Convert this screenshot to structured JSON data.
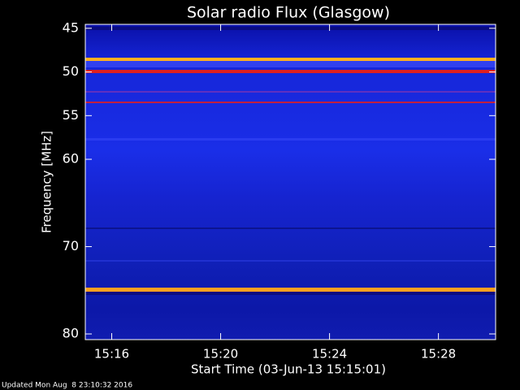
{
  "chart_data": {
    "type": "spectrogram",
    "title": "Solar radio Flux (Glasgow)",
    "y_label": "Frequency [MHz]",
    "x_label": "Start Time (03-Jun-13 15:15:01)",
    "footer": "Updated Mon Aug  8 23:10:32 2016",
    "xlim": [
      15.03,
      30.1
    ],
    "xticks": [
      {
        "value": 16,
        "label": "15:16"
      },
      {
        "value": 20,
        "label": "15:20"
      },
      {
        "value": 24,
        "label": "15:24"
      },
      {
        "value": 28,
        "label": "15:28"
      }
    ],
    "ylim": [
      80.65,
      44.55
    ],
    "yticks": [
      45,
      50,
      55,
      60,
      70,
      80
    ]
  }
}
